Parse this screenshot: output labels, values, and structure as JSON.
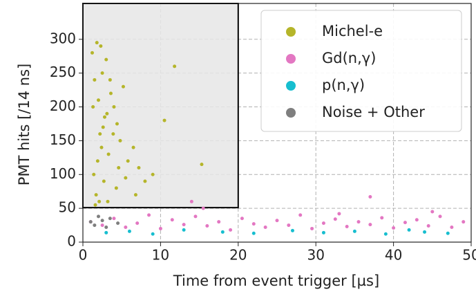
{
  "chart_data": {
    "type": "scatter",
    "xlabel": "Time from event trigger [µs]",
    "ylabel": "PMT hits [/14 ns]",
    "xlim": [
      0,
      50
    ],
    "ylim": [
      0,
      353
    ],
    "xticks": [
      0,
      10,
      20,
      30,
      40,
      50
    ],
    "yticks": [
      0,
      50,
      100,
      150,
      200,
      250,
      300
    ],
    "grid": true,
    "legend": "upper right",
    "highlight_region": {
      "xlim": [
        0,
        20
      ],
      "ylim": [
        51,
        353
      ],
      "color": "#e6e6e6"
    },
    "series": [
      {
        "name": "Michel-e",
        "color": "#b5b52a",
        "x": [
          1.2,
          1.5,
          1.8,
          2.0,
          2.2,
          2.5,
          2.8,
          3.0,
          3.3,
          3.6,
          4.0,
          4.4,
          4.8,
          5.2,
          5.8,
          6.5,
          7.2,
          8.0,
          9.0,
          10.5,
          11.8,
          15.3,
          1.4,
          1.7,
          2.1,
          2.4,
          2.7,
          3.1,
          3.5,
          3.9,
          4.3,
          1.3,
          1.9,
          2.6,
          3.2,
          4.6,
          5.5,
          6.8,
          2.3,
          1.6
        ],
        "values": [
          280,
          240,
          295,
          210,
          160,
          250,
          185,
          270,
          130,
          220,
          200,
          175,
          150,
          230,
          120,
          140,
          110,
          90,
          100,
          180,
          260,
          115,
          100,
          70,
          60,
          140,
          90,
          190,
          240,
          160,
          80,
          200,
          120,
          170,
          60,
          110,
          95,
          70,
          290,
          55
        ]
      },
      {
        "name": "Gd(n,γ)",
        "color": "#e377c2",
        "x": [
          1,
          2.5,
          4,
          5.5,
          7,
          8.5,
          10,
          11.5,
          13,
          14.5,
          16,
          17.5,
          19,
          20.5,
          22,
          23.5,
          25,
          26.5,
          28,
          29.5,
          31,
          32.5,
          34,
          35.5,
          37,
          38.5,
          40,
          41.5,
          43,
          44.5,
          46,
          47.5,
          49,
          14,
          37,
          15.5,
          33,
          45
        ],
        "values": [
          30,
          25,
          35,
          22,
          28,
          40,
          20,
          33,
          26,
          38,
          24,
          30,
          18,
          35,
          27,
          22,
          32,
          25,
          40,
          20,
          28,
          34,
          23,
          30,
          26,
          36,
          21,
          29,
          33,
          24,
          38,
          22,
          30,
          60,
          67,
          50,
          42,
          45
        ]
      },
      {
        "name": "p(n,γ)",
        "color": "#17becf",
        "x": [
          3,
          6,
          9,
          13,
          18,
          22,
          27,
          31,
          35,
          39,
          42,
          44,
          47
        ],
        "values": [
          14,
          16,
          12,
          18,
          15,
          13,
          17,
          14,
          16,
          12,
          18,
          15,
          13
        ]
      },
      {
        "name": "Noise + Other",
        "color": "#7f7f7f",
        "x": [
          1,
          1.5,
          2,
          2.5,
          3,
          3.5,
          4.5
        ],
        "values": [
          30,
          25,
          38,
          32,
          22,
          35,
          28
        ]
      }
    ]
  }
}
